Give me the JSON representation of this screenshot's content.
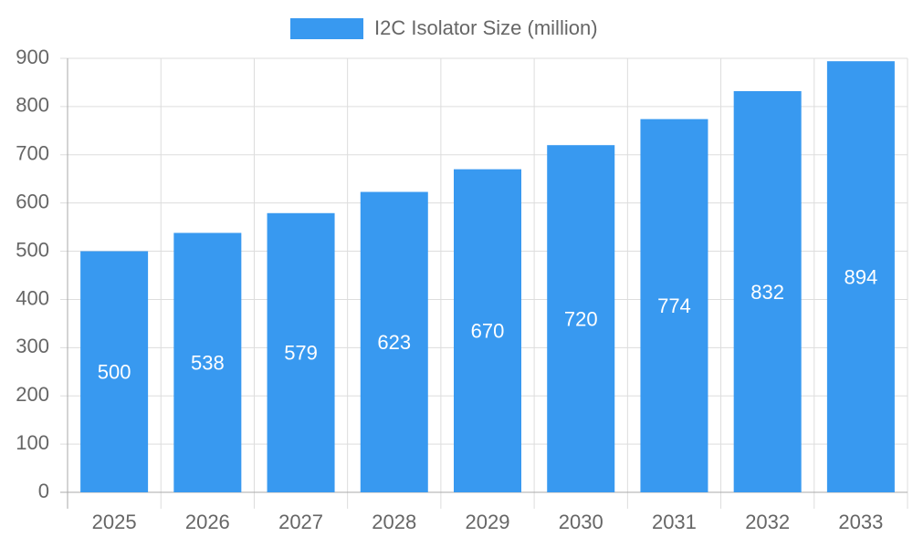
{
  "chart_data": {
    "type": "bar",
    "categories": [
      "2025",
      "2026",
      "2027",
      "2028",
      "2029",
      "2030",
      "2031",
      "2032",
      "2033"
    ],
    "series": [
      {
        "name": "I2C Isolator Size (million)",
        "color": "#3899f0",
        "values": [
          500,
          538,
          579,
          623,
          670,
          720,
          774,
          832,
          894
        ]
      }
    ],
    "ylim": [
      0,
      900
    ],
    "yticks": [
      0,
      100,
      200,
      300,
      400,
      500,
      600,
      700,
      800,
      900
    ],
    "grid": true,
    "legend": "top",
    "data_labels": true
  }
}
